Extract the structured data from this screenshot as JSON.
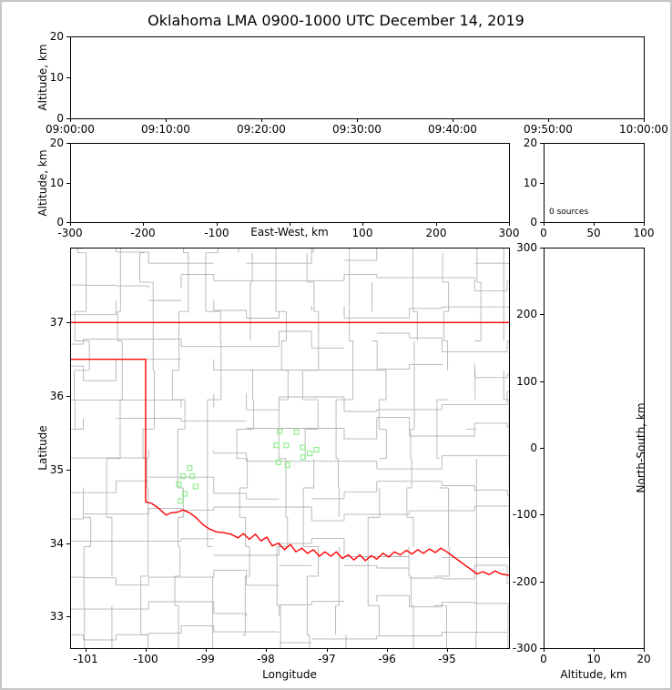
{
  "title": "Oklahoma LMA 0900-1000 UTC December 14, 2019",
  "colors": {
    "frame": "#000000",
    "figure_border": "#c6c6c6",
    "county": "#b4b4b4",
    "state_border": "#ff0000",
    "station": "#90ee90",
    "background": "#ffffff",
    "text": "#000000"
  },
  "chart_data": [
    {
      "id": "time-height",
      "type": "scatter",
      "title": "",
      "xlabel": "",
      "ylabel": "Altitude, km",
      "x_axis": {
        "ticks": [
          {
            "pos": 0.0,
            "label": "09:00:00"
          },
          {
            "pos": 0.16667,
            "label": "09:10:00"
          },
          {
            "pos": 0.33333,
            "label": "09:20:00"
          },
          {
            "pos": 0.5,
            "label": "09:30:00"
          },
          {
            "pos": 0.66667,
            "label": "09:40:00"
          },
          {
            "pos": 0.83333,
            "label": "09:50:00"
          },
          {
            "pos": 1.0,
            "label": "10:00:00"
          }
        ]
      },
      "y_axis": {
        "lim": [
          0,
          20
        ],
        "ticks": [
          {
            "value": 0,
            "label": "0"
          },
          {
            "value": 10,
            "label": "10"
          },
          {
            "value": 20,
            "label": "20"
          }
        ]
      },
      "points": []
    },
    {
      "id": "ew-height",
      "type": "scatter",
      "xlabel": "East-West, km",
      "ylabel": "Altitude, km",
      "x_axis": {
        "lim": [
          -300,
          300
        ],
        "ticks": [
          {
            "value": -300,
            "label": "-300"
          },
          {
            "value": -200,
            "label": "-200"
          },
          {
            "value": -100,
            "label": "-100"
          },
          {
            "value": 0,
            "label": ""
          },
          {
            "value": 100,
            "label": "100"
          },
          {
            "value": 200,
            "label": "200"
          },
          {
            "value": 300,
            "label": "300"
          }
        ]
      },
      "y_axis": {
        "lim": [
          0,
          20
        ],
        "ticks": [
          {
            "value": 0,
            "label": "0"
          },
          {
            "value": 10,
            "label": "10"
          },
          {
            "value": 20,
            "label": "20"
          }
        ]
      },
      "points": []
    },
    {
      "id": "altitude-histogram",
      "type": "line",
      "annotation": "0 sources",
      "x_axis": {
        "lim": [
          0,
          100
        ],
        "ticks": [
          {
            "value": 0,
            "label": "0"
          },
          {
            "value": 50,
            "label": "50"
          },
          {
            "value": 100,
            "label": "100"
          }
        ]
      },
      "y_axis": {
        "lim": [
          0,
          20
        ],
        "ticks": [
          {
            "value": 0,
            "label": "0"
          },
          {
            "value": 10,
            "label": "10"
          },
          {
            "value": 20,
            "label": "20"
          }
        ]
      },
      "points": []
    },
    {
      "id": "plan-view-map",
      "type": "scatter",
      "xlabel": "Longitude",
      "ylabel": "Latitude",
      "x_axis": {
        "lim": [
          -101.25,
          -93.98
        ],
        "ticks": [
          {
            "value": -101,
            "label": "-101"
          },
          {
            "value": -100,
            "label": "-100"
          },
          {
            "value": -99,
            "label": "-99"
          },
          {
            "value": -98,
            "label": "-98"
          },
          {
            "value": -97,
            "label": "-97"
          },
          {
            "value": -96,
            "label": "-96"
          },
          {
            "value": -95,
            "label": "-95"
          }
        ]
      },
      "y_axis": {
        "lim": [
          32.57,
          38.02
        ],
        "ticks": [
          {
            "value": 33,
            "label": "33"
          },
          {
            "value": 34,
            "label": "34"
          },
          {
            "value": 35,
            "label": "35"
          },
          {
            "value": 36,
            "label": "36"
          },
          {
            "value": 37,
            "label": "37"
          }
        ]
      },
      "state_boundary": [
        [
          [
            -101.25,
            37.0
          ],
          [
            -93.98,
            37.0
          ]
        ],
        [
          [
            -101.25,
            36.5
          ],
          [
            -100.0,
            36.5
          ],
          [
            -100.0,
            34.56
          ],
          [
            -99.9,
            34.54
          ],
          [
            -99.78,
            34.47
          ],
          [
            -99.66,
            34.38
          ],
          [
            -99.58,
            34.41
          ],
          [
            -99.47,
            34.42
          ],
          [
            -99.38,
            34.45
          ],
          [
            -99.27,
            34.41
          ],
          [
            -99.17,
            34.35
          ],
          [
            -99.05,
            34.25
          ],
          [
            -98.94,
            34.19
          ],
          [
            -98.82,
            34.15
          ],
          [
            -98.7,
            34.14
          ],
          [
            -98.58,
            34.12
          ],
          [
            -98.47,
            34.07
          ],
          [
            -98.38,
            34.13
          ],
          [
            -98.28,
            34.05
          ],
          [
            -98.18,
            34.12
          ],
          [
            -98.09,
            34.03
          ],
          [
            -97.99,
            34.08
          ],
          [
            -97.9,
            33.96
          ],
          [
            -97.8,
            34.0
          ],
          [
            -97.7,
            33.91
          ],
          [
            -97.6,
            33.98
          ],
          [
            -97.51,
            33.88
          ],
          [
            -97.41,
            33.93
          ],
          [
            -97.32,
            33.86
          ],
          [
            -97.22,
            33.91
          ],
          [
            -97.12,
            33.82
          ],
          [
            -97.03,
            33.88
          ],
          [
            -96.93,
            33.82
          ],
          [
            -96.84,
            33.88
          ],
          [
            -96.74,
            33.79
          ],
          [
            -96.64,
            33.84
          ],
          [
            -96.55,
            33.77
          ],
          [
            -96.45,
            33.84
          ],
          [
            -96.36,
            33.76
          ],
          [
            -96.26,
            33.83
          ],
          [
            -96.17,
            33.78
          ],
          [
            -96.07,
            33.86
          ],
          [
            -95.97,
            33.81
          ],
          [
            -95.88,
            33.88
          ],
          [
            -95.78,
            33.84
          ],
          [
            -95.68,
            33.9
          ],
          [
            -95.59,
            33.85
          ],
          [
            -95.49,
            33.91
          ],
          [
            -95.4,
            33.86
          ],
          [
            -95.3,
            33.92
          ],
          [
            -95.2,
            33.87
          ],
          [
            -95.11,
            33.93
          ],
          [
            -95.01,
            33.88
          ],
          [
            -94.91,
            33.82
          ],
          [
            -94.81,
            33.76
          ],
          [
            -94.71,
            33.7
          ],
          [
            -94.61,
            33.64
          ],
          [
            -94.51,
            33.58
          ],
          [
            -94.41,
            33.61
          ],
          [
            -94.31,
            33.57
          ],
          [
            -94.21,
            33.62
          ],
          [
            -94.11,
            33.58
          ],
          [
            -93.98,
            33.56
          ]
        ]
      ],
      "stations": [
        [
          -97.78,
          35.52
        ],
        [
          -97.5,
          35.51
        ],
        [
          -97.83,
          35.33
        ],
        [
          -97.67,
          35.33
        ],
        [
          -97.4,
          35.3
        ],
        [
          -97.17,
          35.27
        ],
        [
          -97.8,
          35.1
        ],
        [
          -97.65,
          35.06
        ],
        [
          -97.39,
          35.17
        ],
        [
          -97.28,
          35.22
        ],
        [
          -99.27,
          35.02
        ],
        [
          -99.38,
          34.91
        ],
        [
          -99.23,
          34.91
        ],
        [
          -99.45,
          34.8
        ],
        [
          -99.17,
          34.77
        ],
        [
          -99.35,
          34.67
        ],
        [
          -99.42,
          34.57
        ]
      ],
      "counties": {
        "seed": 42,
        "lon_offset": 0.22,
        "lon_step": 0.54,
        "lat_offset": 0.18,
        "lat_step": 0.4,
        "jitter": 0.16,
        "skip_prob": 0.12
      }
    },
    {
      "id": "ns-height",
      "type": "scatter",
      "xlabel": "Altitude, km",
      "ylabel": "North-South, km",
      "x_axis": {
        "lim": [
          0,
          20
        ],
        "ticks": [
          {
            "value": 0,
            "label": "0"
          },
          {
            "value": 10,
            "label": "10"
          },
          {
            "value": 20,
            "label": "20"
          }
        ]
      },
      "y_axis": {
        "lim": [
          -300,
          300
        ],
        "ticks": [
          {
            "value": 300,
            "label": "300"
          },
          {
            "value": 200,
            "label": "200"
          },
          {
            "value": 100,
            "label": "100"
          },
          {
            "value": 0,
            "label": "0"
          },
          {
            "value": -100,
            "label": "-100"
          },
          {
            "value": -200,
            "label": "-200"
          },
          {
            "value": -300,
            "label": "-300"
          }
        ]
      },
      "points": []
    }
  ]
}
